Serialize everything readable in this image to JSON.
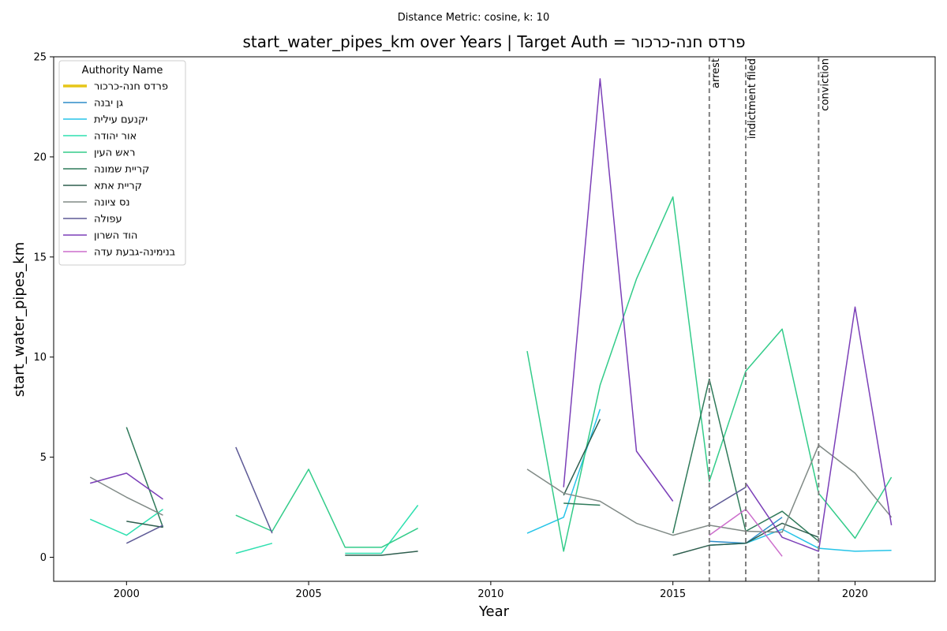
{
  "suptitle": "Distance Metric: cosine, k: 10",
  "chart_data": {
    "type": "line",
    "title": "start_water_pipes_km over Years | Target Auth = פרדס חנה-כרכור",
    "xlabel": "Year",
    "ylabel": "start_water_pipes_km",
    "xlim": [
      1998,
      2022.2
    ],
    "ylim": [
      -1.2,
      25
    ],
    "xticks": [
      2000,
      2005,
      2010,
      2015,
      2020
    ],
    "yticks": [
      0,
      5,
      10,
      15,
      20,
      25
    ],
    "grid": false,
    "legend": {
      "title": "Authority Name",
      "placement": "top-left"
    },
    "annotations": [
      {
        "x": 2016,
        "label": "arrest"
      },
      {
        "x": 2017,
        "label": "indictment filed"
      },
      {
        "x": 2019,
        "label": "conviction"
      }
    ],
    "series": [
      {
        "name": "פרדס חנה-כרכור",
        "color": "#e6c619",
        "width": 3.5,
        "points": []
      },
      {
        "name": "גן יבנה",
        "color": "#2d8cc9",
        "width": 1.5,
        "points": [
          [
            2016,
            0.8
          ],
          [
            2017,
            0.7
          ],
          [
            2018,
            2.0
          ]
        ]
      },
      {
        "name": "יקנעם עילית",
        "color": "#26c4e8",
        "width": 1.5,
        "points": [
          [
            2011,
            1.2
          ],
          [
            2012,
            2.0
          ],
          [
            2013,
            7.4
          ],
          null,
          [
            2016,
            0.6
          ],
          [
            2017,
            0.7
          ],
          [
            2018,
            1.4
          ],
          [
            2019,
            0.45
          ],
          [
            2020,
            0.3
          ],
          [
            2021,
            0.35
          ]
        ]
      },
      {
        "name": "אור יהודה",
        "color": "#2ee0b0",
        "width": 1.5,
        "points": [
          [
            1999,
            1.9
          ],
          [
            2000,
            1.1
          ],
          [
            2001,
            2.4
          ],
          null,
          [
            2003,
            0.2
          ],
          [
            2004,
            0.7
          ],
          null,
          [
            2006,
            0.2
          ],
          [
            2007,
            0.2
          ],
          [
            2008,
            2.6
          ]
        ]
      },
      {
        "name": "ראש העין",
        "color": "#33cc8a",
        "width": 1.5,
        "points": [
          [
            2003,
            2.1
          ],
          [
            2004,
            1.3
          ],
          [
            2005,
            4.4
          ],
          [
            2006,
            0.5
          ],
          [
            2007,
            0.5
          ],
          [
            2008,
            1.45
          ],
          null,
          [
            2011,
            10.3
          ],
          [
            2012,
            0.3
          ],
          [
            2013,
            8.6
          ],
          [
            2014,
            13.9
          ],
          [
            2015,
            18.0
          ],
          [
            2016,
            3.8
          ],
          [
            2017,
            9.3
          ],
          [
            2018,
            11.4
          ],
          [
            2019,
            3.2
          ],
          [
            2020,
            0.95
          ],
          [
            2021,
            4.0
          ]
        ]
      },
      {
        "name": "קריית שמונה",
        "color": "#2f7a5a",
        "width": 1.5,
        "points": [
          [
            2000,
            6.5
          ],
          [
            2001,
            1.5
          ],
          null,
          [
            2012,
            2.7
          ],
          [
            2013,
            2.6
          ],
          null,
          [
            2015,
            1.2
          ],
          [
            2016,
            8.9
          ],
          [
            2017,
            1.3
          ],
          [
            2018,
            2.3
          ],
          [
            2019,
            0.8
          ]
        ]
      },
      {
        "name": "קריית אתא",
        "color": "#2e5e4e",
        "width": 1.5,
        "points": [
          [
            2000,
            1.8
          ],
          [
            2001,
            1.5
          ],
          null,
          [
            2006,
            0.1
          ],
          [
            2007,
            0.1
          ],
          [
            2008,
            0.3
          ],
          null,
          [
            2012,
            3.1
          ],
          [
            2013,
            6.9
          ],
          null,
          [
            2015,
            0.1
          ],
          [
            2016,
            0.6
          ],
          [
            2017,
            0.7
          ],
          [
            2018,
            1.7
          ],
          [
            2019,
            1.0
          ]
        ]
      },
      {
        "name": "נס ציונה",
        "color": "#808a86",
        "width": 1.5,
        "points": [
          [
            1999,
            4.0
          ],
          [
            2000,
            3.0
          ],
          [
            2001,
            2.1
          ],
          null,
          [
            2011,
            4.4
          ],
          [
            2012,
            3.2
          ],
          [
            2013,
            2.8
          ],
          [
            2014,
            1.7
          ],
          [
            2015,
            1.1
          ],
          [
            2016,
            1.6
          ],
          [
            2017,
            1.3
          ],
          [
            2018,
            1.25
          ],
          [
            2019,
            5.6
          ],
          [
            2020,
            4.2
          ],
          [
            2021,
            2.0
          ]
        ]
      },
      {
        "name": "עפולה",
        "color": "#5e5a96",
        "width": 1.5,
        "points": [
          [
            2000,
            0.7
          ],
          [
            2001,
            1.6
          ],
          null,
          [
            2003,
            5.5
          ],
          [
            2004,
            1.2
          ],
          null,
          [
            2016,
            2.4
          ],
          [
            2017,
            3.5
          ]
        ]
      },
      {
        "name": "הוד השרון",
        "color": "#7b3fb8",
        "width": 1.5,
        "points": [
          [
            1999,
            3.7
          ],
          [
            2000,
            4.2
          ],
          [
            2001,
            2.9
          ],
          null,
          [
            2012,
            3.5
          ],
          [
            2013,
            23.9
          ],
          [
            2014,
            5.3
          ],
          [
            2015,
            2.8
          ],
          null,
          [
            2017,
            3.7
          ],
          [
            2018,
            1.0
          ],
          [
            2019,
            0.3
          ],
          [
            2020,
            12.5
          ],
          [
            2021,
            1.6
          ]
        ]
      },
      {
        "name": "בנימינה-גבעת עדה",
        "color": "#cc6ecc",
        "width": 1.5,
        "points": [
          [
            2016,
            1.1
          ],
          [
            2017,
            2.4
          ],
          [
            2018,
            0.05
          ]
        ]
      }
    ]
  }
}
